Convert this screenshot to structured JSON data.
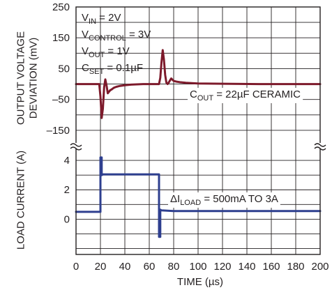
{
  "chart_data": {
    "type": "line",
    "title": "",
    "xlabel": "TIME (µs)",
    "xlim": [
      0,
      200
    ],
    "x_ticks": [
      "0",
      "20",
      "40",
      "60",
      "80",
      "100",
      "120",
      "140",
      "160",
      "180",
      "200"
    ],
    "grid": true,
    "panels": [
      {
        "ylabel_lines": [
          "OUTPUT VOLTAGE",
          "DEVIATION (mV)"
        ],
        "ylim": [
          -200,
          250
        ],
        "y_ticks": [
          "250",
          "150",
          "50",
          "–50",
          "–150"
        ],
        "y_tick_values": [
          250,
          150,
          50,
          -50,
          -150
        ],
        "color": "#7d1a2b",
        "series": [
          {
            "x": [
              0,
              19,
              20,
              21,
              22,
              23,
              24,
              25,
              26,
              27,
              28,
              29,
              30,
              31,
              33,
              36,
              40,
              45,
              50,
              55,
              60,
              65,
              68,
              69,
              70,
              71,
              72,
              73,
              74,
              75,
              76,
              77,
              78,
              79,
              80,
              82,
              85,
              90,
              100,
              120,
              150,
              200
            ],
            "y": [
              0,
              0,
              -40,
              -110,
              -80,
              -10,
              15,
              -5,
              -30,
              -25,
              -20,
              -18,
              -15,
              -12,
              -9,
              -6,
              -4,
              -2,
              -1,
              0,
              0,
              0,
              0,
              20,
              70,
              110,
              80,
              30,
              5,
              0,
              5,
              12,
              18,
              14,
              10,
              8,
              6,
              4,
              2,
              1,
              0,
              0
            ]
          }
        ],
        "annotations": [
          {
            "parts": [
              {
                "t": "V",
                "sub": false
              },
              {
                "t": "IN",
                "sub": true
              },
              {
                "t": " = 2V",
                "sub": false
              }
            ]
          },
          {
            "parts": [
              {
                "t": "V",
                "sub": false
              },
              {
                "t": "CONTROL",
                "sub": true
              },
              {
                "t": " = 3V",
                "sub": false
              }
            ]
          },
          {
            "parts": [
              {
                "t": "V",
                "sub": false
              },
              {
                "t": "OUT",
                "sub": true
              },
              {
                "t": " = 1V",
                "sub": false
              }
            ]
          },
          {
            "parts": [
              {
                "t": "C",
                "sub": false
              },
              {
                "t": "SET",
                "sub": true
              },
              {
                "t": " = 0.1µF",
                "sub": false
              }
            ]
          },
          {
            "parts": [
              {
                "t": "C",
                "sub": false
              },
              {
                "t": "OUT",
                "sub": true
              },
              {
                "t": " = 22µF CERAMIC",
                "sub": false
              }
            ]
          }
        ]
      },
      {
        "ylabel_lines": [
          "LOAD CURRENT (A)"
        ],
        "ylim": [
          -2.4,
          5
        ],
        "y_ticks": [
          "4",
          "2",
          "0"
        ],
        "y_tick_values": [
          4,
          2,
          0
        ],
        "color": "#2e3f8f",
        "series": [
          {
            "x": [
              0,
              20,
              20,
              21,
              21,
              22,
              68,
              68,
              69,
              69,
              70,
              80,
              200
            ],
            "y": [
              0.5,
              0.5,
              4.2,
              4.2,
              3.0,
              3.05,
              3.05,
              -1.2,
              -1.2,
              0.65,
              0.6,
              0.55,
              0.55
            ]
          }
        ],
        "annotations": [
          {
            "parts": [
              {
                "t": "ΔI",
                "sub": false
              },
              {
                "t": "LOAD",
                "sub": true
              },
              {
                "t": " = 500mA TO 3A",
                "sub": false
              }
            ]
          }
        ]
      }
    ]
  }
}
